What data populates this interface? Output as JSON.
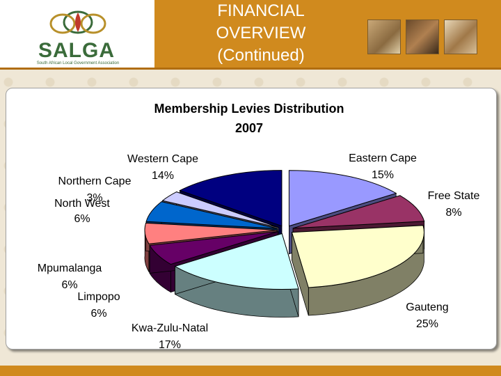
{
  "header": {
    "title_lines": [
      "FINANCIAL",
      "OVERVIEW",
      "(Continued)"
    ],
    "logo_text": "SALGA",
    "logo_subtitle": "South African Local Government Association"
  },
  "colors": {
    "header_orange": "#d08a1e",
    "background": "#efe7d6",
    "logo_green": "#3a6b3a",
    "logo_red": "#c0392b"
  },
  "chart_data": {
    "type": "pie",
    "title": "Membership Levies Distribution",
    "subtitle": "2007",
    "legend": false,
    "slices": [
      {
        "label": "Eastern Cape",
        "pct_label": "15%",
        "value": 15,
        "color": "#9999ff",
        "side": "#4c4c80"
      },
      {
        "label": "Free State",
        "pct_label": "8%",
        "value": 8,
        "color": "#993366",
        "side": "#4c1933"
      },
      {
        "label": "Gauteng",
        "pct_label": "25%",
        "value": 25,
        "color": "#ffffcc",
        "side": "#808066"
      },
      {
        "label": "Kwa-Zulu-Natal",
        "pct_label": "17%",
        "value": 17,
        "color": "#ccffff",
        "side": "#668080"
      },
      {
        "label": "Limpopo",
        "pct_label": "6%",
        "value": 6,
        "color": "#660066",
        "side": "#330033"
      },
      {
        "label": "Mpumalanga",
        "pct_label": "6%",
        "value": 6,
        "color": "#ff8080",
        "side": "#804040"
      },
      {
        "label": "North West",
        "pct_label": "6%",
        "value": 6,
        "color": "#0066cc",
        "side": "#003366"
      },
      {
        "label": "Northern Cape",
        "pct_label": "3%",
        "value": 3,
        "color": "#ccccff",
        "side": "#666680"
      },
      {
        "label": "Western Cape",
        "pct_label": "14%",
        "value": 14,
        "color": "#000080",
        "side": "#000040"
      }
    ]
  }
}
